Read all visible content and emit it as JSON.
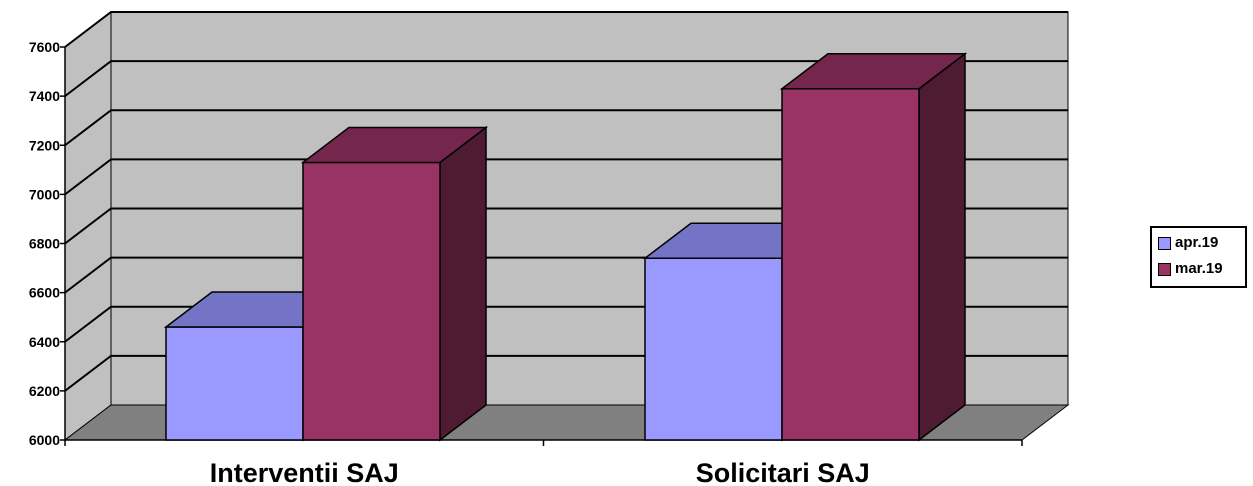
{
  "chart_data": {
    "type": "bar",
    "title": "",
    "xlabel": "",
    "ylabel": "",
    "categories": [
      "Interventii SAJ",
      "Solicitari SAJ"
    ],
    "series": [
      {
        "name": "apr.19",
        "values": [
          6460,
          6740
        ]
      },
      {
        "name": "mar.19",
        "values": [
          7130,
          7430
        ]
      }
    ],
    "ylim": [
      6000,
      7600
    ],
    "yticks": [
      6000,
      6200,
      6400,
      6600,
      6800,
      7000,
      7200,
      7400,
      7600
    ],
    "grid": true,
    "three_d": true,
    "legend_position": "right",
    "colors": {
      "series_front": [
        "#9999ff",
        "#993366"
      ],
      "series_top": [
        "#7474c6",
        "#75264d"
      ],
      "series_side": [
        "#5a5a9e",
        "#4e1b33"
      ],
      "wall": "#c0c0c0",
      "floor": "#808080",
      "gridline": "#000000"
    }
  }
}
